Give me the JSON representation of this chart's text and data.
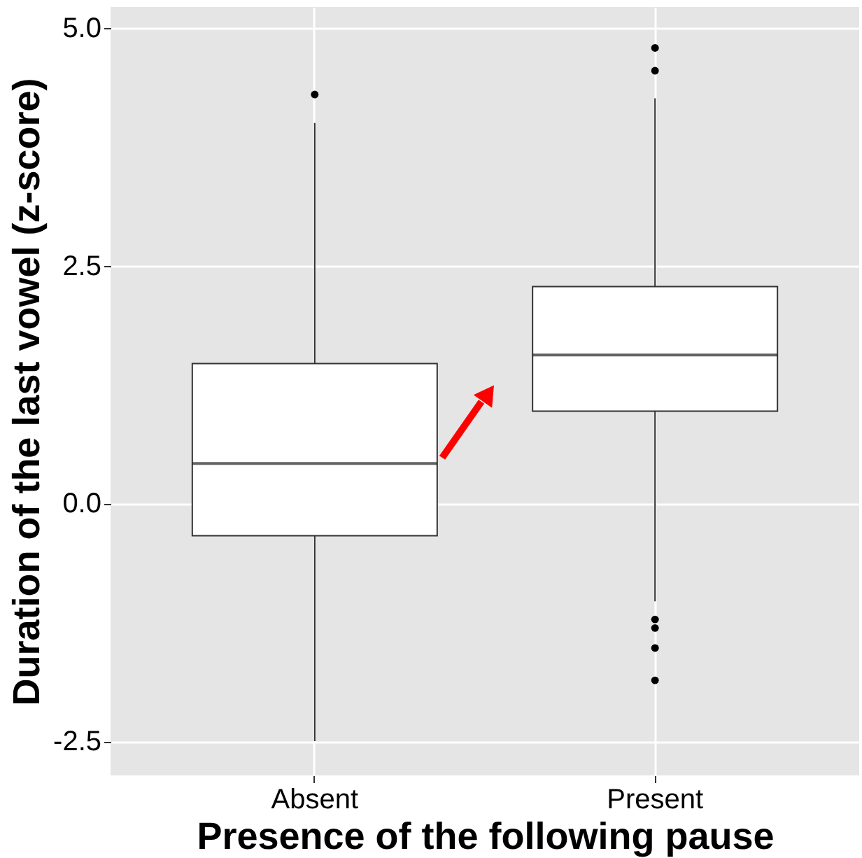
{
  "chart_data": {
    "type": "box",
    "xlabel": "Presence of the following pause",
    "ylabel": "Duration of the last vowel (z-score)",
    "categories": [
      "Absent",
      "Present"
    ],
    "boxes": [
      {
        "low": -2.5,
        "q1": -0.34,
        "median": 0.42,
        "q3": 1.47,
        "high": 4.0,
        "outliers": [
          4.3
        ]
      },
      {
        "low": -1.03,
        "q1": 0.97,
        "median": 1.56,
        "q3": 2.28,
        "high": 4.26,
        "outliers": [
          4.79,
          4.55,
          -1.22,
          -1.31,
          -1.52,
          -1.86
        ]
      }
    ],
    "ylim": [
      -2.86,
      5.22
    ],
    "yticks": [
      {
        "value": -2.5,
        "label": "-2.5"
      },
      {
        "value": 0,
        "label": "0.0"
      },
      {
        "value": 2.5,
        "label": "2.5"
      },
      {
        "value": 5,
        "label": "5.0"
      }
    ],
    "grid": true
  }
}
